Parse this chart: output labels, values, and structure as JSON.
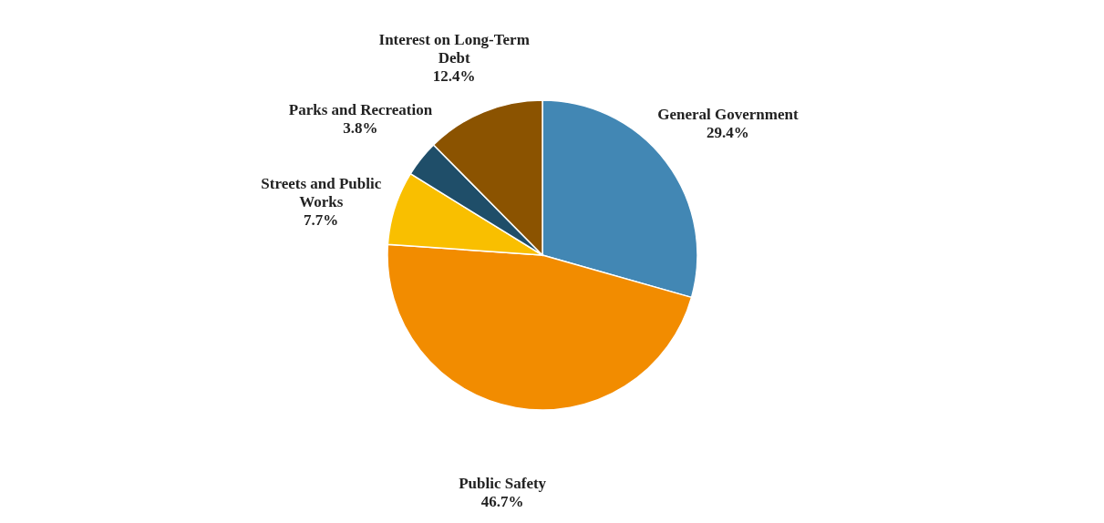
{
  "chart_data": {
    "type": "pie",
    "categories": [
      "General Government",
      "Public Safety",
      "Streets and Public Works",
      "Parks and Recreation",
      "Interest on Long-Term Debt"
    ],
    "values": [
      29.4,
      46.7,
      7.7,
      3.8,
      12.4
    ],
    "value_labels": [
      "29.4%",
      "46.7%",
      "7.7%",
      "3.8%",
      "12.4%"
    ],
    "colors": [
      "#4287b4",
      "#f28c00",
      "#f9bf00",
      "#1f4e69",
      "#8b5300"
    ]
  }
}
